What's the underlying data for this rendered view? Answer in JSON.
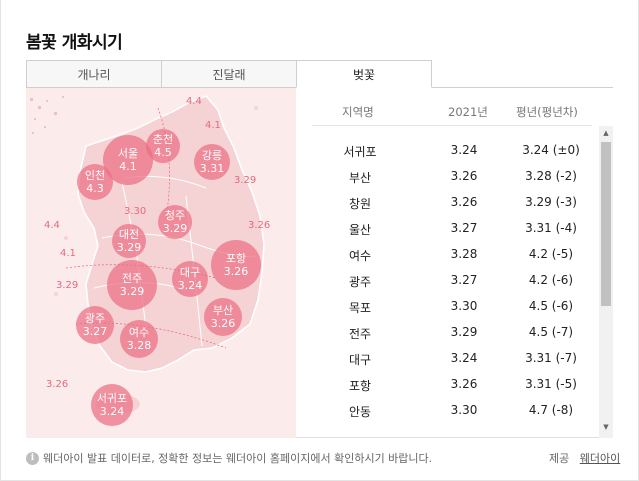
{
  "title": "봄꽃 개화시기",
  "tabs": [
    {
      "label": "개나리",
      "active": false
    },
    {
      "label": "진달래",
      "active": false
    },
    {
      "label": "벚꽃",
      "active": true
    }
  ],
  "map": {
    "bubbles": [
      {
        "name": "서울",
        "value": "4.1"
      },
      {
        "name": "춘천",
        "value": "4.5"
      },
      {
        "name": "강릉",
        "value": "3.31"
      },
      {
        "name": "인천",
        "value": "4.3"
      },
      {
        "name": "청주",
        "value": "3.29"
      },
      {
        "name": "대전",
        "value": "3.29"
      },
      {
        "name": "포항",
        "value": "3.26"
      },
      {
        "name": "대구",
        "value": "3.24"
      },
      {
        "name": "전주",
        "value": "3.29"
      },
      {
        "name": "부산",
        "value": "3.26"
      },
      {
        "name": "광주",
        "value": "3.27"
      },
      {
        "name": "여수",
        "value": "3.28"
      },
      {
        "name": "서귀포",
        "value": "3.24"
      }
    ],
    "plain_labels": [
      "4.4",
      "4.1",
      "3.29",
      "4.4",
      "3.30",
      "3.26",
      "4.1",
      "3.29",
      "3.26"
    ]
  },
  "table": {
    "headers": {
      "region": "지역명",
      "year": "2021년",
      "avg": "평년(평년차)"
    },
    "rows": [
      {
        "region": "서귀포",
        "year": "3.24",
        "avg": "3.24 (±0)"
      },
      {
        "region": "부산",
        "year": "3.26",
        "avg": "3.28 (-2)"
      },
      {
        "region": "창원",
        "year": "3.26",
        "avg": "3.29 (-3)"
      },
      {
        "region": "울산",
        "year": "3.27",
        "avg": "3.31 (-4)"
      },
      {
        "region": "여수",
        "year": "3.28",
        "avg": "4.2 (-5)"
      },
      {
        "region": "광주",
        "year": "3.27",
        "avg": "4.2 (-6)"
      },
      {
        "region": "목포",
        "year": "3.30",
        "avg": "4.5 (-6)"
      },
      {
        "region": "전주",
        "year": "3.29",
        "avg": "4.5 (-7)"
      },
      {
        "region": "대구",
        "year": "3.24",
        "avg": "3.31 (-7)"
      },
      {
        "region": "포항",
        "year": "3.26",
        "avg": "3.31 (-5)"
      },
      {
        "region": "안동",
        "year": "3.30",
        "avg": "4.7 (-8)"
      }
    ]
  },
  "footer": {
    "info_icon": "info-icon",
    "note": "웨더아이 발표 데이터로, 정확한 정보는 웨더아이 홈페이지에서 확인하시기 바랍니다.",
    "source_label": "제공",
    "source_link": "웨더아이"
  },
  "colors": {
    "bubble": "#ec6e84",
    "map_bg": "#fbeceb",
    "label": "#e36b7f"
  }
}
